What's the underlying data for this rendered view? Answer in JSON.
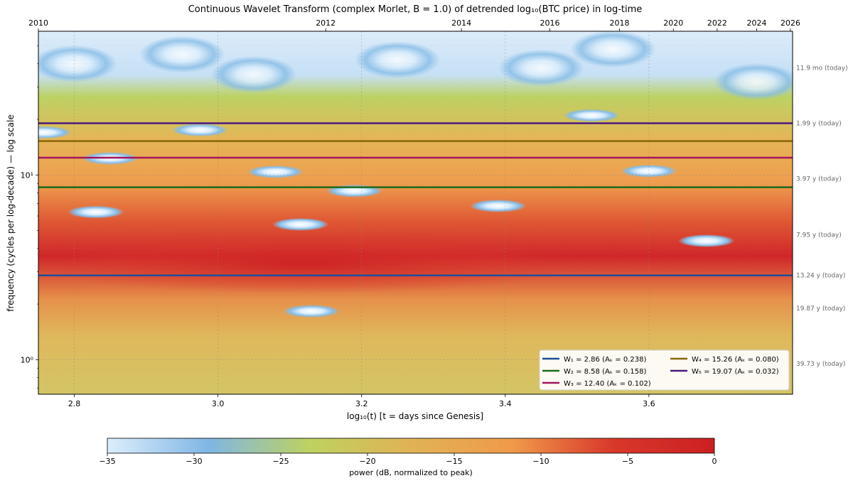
{
  "chart_data": {
    "type": "heatmap",
    "title": "Continuous Wavelet Transform  (complex Morlet, B = 1.0)  of detrended log₁₀(BTC price) in log-time",
    "xlabel": "log₁₀(t)     [t = days since Genesis]",
    "ylabel": "frequency  (cycles per log-decade)   — log scale",
    "x_range": [
      2.75,
      3.8
    ],
    "y_range": [
      0.65,
      60
    ],
    "y_scale": "log",
    "x_ticks": [
      2.8,
      3.0,
      3.2,
      3.4,
      3.6
    ],
    "x_tick_labels": [
      "2.8",
      "3.0",
      "3.2",
      "3.4",
      "3.6"
    ],
    "y_ticks": [
      1,
      10
    ],
    "y_tick_labels": [
      "10⁰",
      "10¹"
    ],
    "top_axis": {
      "labels": [
        "2010",
        "2012",
        "2014",
        "2016",
        "2018",
        "2020",
        "2022",
        "2024",
        "2026"
      ],
      "log10t": [
        2.75,
        3.15,
        3.339,
        3.462,
        3.559,
        3.634,
        3.695,
        3.75,
        3.797
      ]
    },
    "right_annotations": {
      "labels": [
        "11.9 mo (today)",
        "1.99 y (today)",
        "3.97 y (today)",
        "7.95 y (today)",
        "13.24 y (today)",
        "19.87 y (today)",
        "39.73 y (today)"
      ],
      "freqs": [
        38,
        19.1,
        9.55,
        4.75,
        2.86,
        1.9,
        0.95
      ]
    },
    "horizontal_lines": [
      {
        "name": "W₁",
        "sub": "1",
        "freq": 2.86,
        "amp": 0.238,
        "label": "W₁ = 2.86   (Aₖ = 0.238)",
        "color": "#1f4e9c"
      },
      {
        "name": "W₂",
        "sub": "2",
        "freq": 8.58,
        "amp": 0.158,
        "label": "W₂ = 8.58   (Aₖ = 0.158)",
        "color": "#1a6b1a"
      },
      {
        "name": "W₃",
        "sub": "3",
        "freq": 12.4,
        "amp": 0.102,
        "label": "W₃ = 12.40   (Aₖ = 0.102)",
        "color": "#a3135f"
      },
      {
        "name": "W₄",
        "sub": "4",
        "freq": 15.26,
        "amp": 0.08,
        "label": "W₄ = 15.26   (Aₖ = 0.080)",
        "color": "#8a6508"
      },
      {
        "name": "W₅",
        "sub": "5",
        "freq": 19.07,
        "amp": 0.032,
        "label": "W₅ = 19.07   (Aₖ = 0.032)",
        "color": "#4b1a7e"
      }
    ],
    "colorbar": {
      "label": "power (dB, normalized to peak)",
      "range": [
        -35,
        0
      ],
      "ticks": [
        -35,
        -30,
        -25,
        -20,
        -15,
        -10,
        -5,
        0
      ],
      "tick_labels": [
        "−35",
        "−30",
        "−25",
        "−20",
        "−15",
        "−10",
        "−5",
        "0"
      ],
      "colors": [
        "#dceefc",
        "#7fb6e4",
        "#bed260",
        "#e1b255",
        "#f09a4a",
        "#d8382a",
        "#cc1f22"
      ]
    },
    "low_power_spots": [
      {
        "x": 2.757,
        "f": 17.0,
        "db": -32
      },
      {
        "x": 2.83,
        "f": 6.3,
        "db": -33
      },
      {
        "x": 2.85,
        "f": 12.3,
        "db": -33
      },
      {
        "x": 2.975,
        "f": 17.5,
        "db": -32
      },
      {
        "x": 3.08,
        "f": 10.4,
        "db": -34
      },
      {
        "x": 3.115,
        "f": 5.4,
        "db": -33
      },
      {
        "x": 3.13,
        "f": 1.83,
        "db": -33
      },
      {
        "x": 3.19,
        "f": 8.2,
        "db": -34
      },
      {
        "x": 3.39,
        "f": 6.8,
        "db": -32
      },
      {
        "x": 3.52,
        "f": 21.0,
        "db": -33
      },
      {
        "x": 3.6,
        "f": 10.5,
        "db": -33
      },
      {
        "x": 3.68,
        "f": 4.4,
        "db": -35
      }
    ]
  }
}
